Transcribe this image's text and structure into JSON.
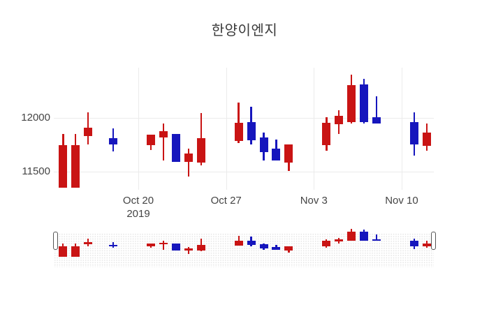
{
  "title": {
    "text": "한양이엔지"
  },
  "colors": {
    "increasing": "#c91414",
    "decreasing": "#1616bd",
    "grid": "#ebebeb",
    "tick_text": "#444444",
    "title_text": "#3a3a3a"
  },
  "chart_data": {
    "type": "candlestick",
    "title": "한양이엔지",
    "increasing_color": "#c91414",
    "decreasing_color": "#1616bd",
    "grid": true,
    "ylim_main": [
      11330,
      12470
    ],
    "ylim_navigator": [
      11330,
      12430
    ],
    "y_ticks": [
      {
        "label": "12000",
        "value": 12000
      },
      {
        "label": "11500",
        "value": 11500
      }
    ],
    "x_ticks": [
      {
        "label": "Oct 20",
        "sublabel": "2019",
        "date": "2019-10-20"
      },
      {
        "label": "Oct 27",
        "sublabel": "",
        "date": "2019-10-27"
      },
      {
        "label": "Nov 3",
        "sublabel": "",
        "date": "2019-11-03"
      },
      {
        "label": "Nov 10",
        "sublabel": "",
        "date": "2019-11-10"
      }
    ],
    "ohlc": [
      {
        "date": "2019-10-14",
        "open": 11350,
        "high": 11850,
        "low": 11350,
        "close": 11750
      },
      {
        "date": "2019-10-15",
        "open": 11350,
        "high": 11850,
        "low": 11350,
        "close": 11750
      },
      {
        "date": "2019-10-16",
        "open": 11830,
        "high": 12050,
        "low": 11750,
        "close": 11910
      },
      {
        "date": "2019-10-18",
        "open": 11810,
        "high": 11900,
        "low": 11690,
        "close": 11750
      },
      {
        "date": "2019-10-21",
        "open": 11745,
        "high": 11845,
        "low": 11700,
        "close": 11845
      },
      {
        "date": "2019-10-22",
        "open": 11820,
        "high": 11950,
        "low": 11605,
        "close": 11875
      },
      {
        "date": "2019-10-23",
        "open": 11850,
        "high": 11850,
        "low": 11590,
        "close": 11590
      },
      {
        "date": "2019-10-24",
        "open": 11590,
        "high": 11715,
        "low": 11455,
        "close": 11670
      },
      {
        "date": "2019-10-25",
        "open": 11585,
        "high": 12045,
        "low": 11560,
        "close": 11810
      },
      {
        "date": "2019-10-28",
        "open": 11785,
        "high": 12145,
        "low": 11765,
        "close": 11955
      },
      {
        "date": "2019-10-29",
        "open": 11960,
        "high": 12105,
        "low": 11750,
        "close": 11790
      },
      {
        "date": "2019-10-30",
        "open": 11820,
        "high": 11865,
        "low": 11605,
        "close": 11680
      },
      {
        "date": "2019-10-31",
        "open": 11715,
        "high": 11800,
        "low": 11605,
        "close": 11605
      },
      {
        "date": "2019-11-01",
        "open": 11585,
        "high": 11755,
        "low": 11505,
        "close": 11755
      },
      {
        "date": "2019-11-04",
        "open": 11745,
        "high": 12005,
        "low": 11695,
        "close": 11955
      },
      {
        "date": "2019-11-05",
        "open": 11940,
        "high": 12070,
        "low": 11850,
        "close": 12020
      },
      {
        "date": "2019-11-06",
        "open": 11960,
        "high": 12400,
        "low": 11950,
        "close": 12305
      },
      {
        "date": "2019-11-07",
        "open": 12310,
        "high": 12365,
        "low": 11950,
        "close": 11960
      },
      {
        "date": "2019-11-08",
        "open": 12005,
        "high": 12200,
        "low": 11950,
        "close": 11950
      },
      {
        "date": "2019-11-11",
        "open": 11960,
        "high": 12050,
        "low": 11650,
        "close": 11750
      },
      {
        "date": "2019-11-12",
        "open": 11740,
        "high": 11950,
        "low": 11695,
        "close": 11865
      }
    ]
  },
  "navigator": {
    "full_range_selected": true
  }
}
